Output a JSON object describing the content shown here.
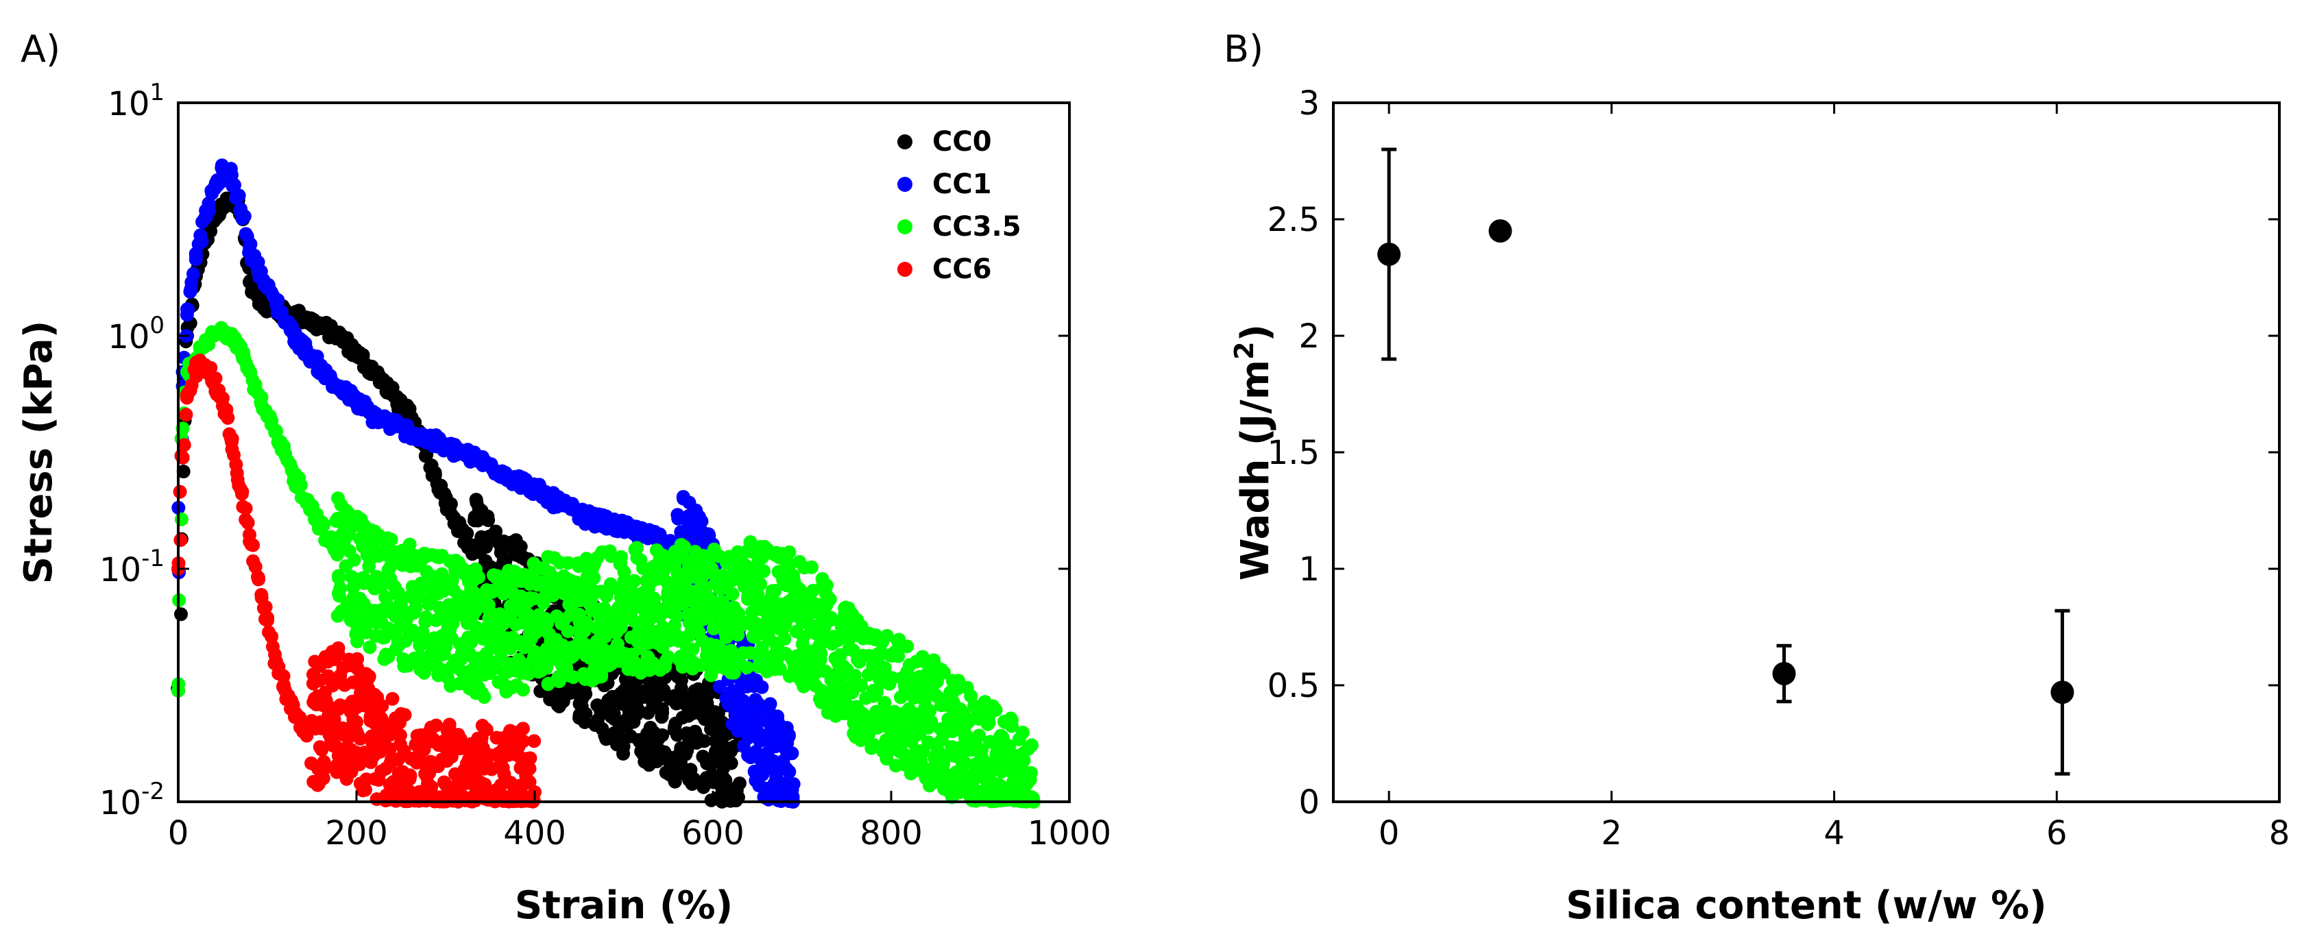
{
  "panels": [
    {
      "label": "A)"
    },
    {
      "label": "B)"
    }
  ],
  "chart_data": [
    {
      "type": "scatter",
      "panel": "A)",
      "xlabel": "Strain (%)",
      "ylabel": "Stress (kPa)",
      "xlim": [
        0,
        1000
      ],
      "ylim": [
        0.01,
        10
      ],
      "yscale": "log",
      "xticks": [
        "0",
        "200",
        "400",
        "600",
        "800",
        "1000"
      ],
      "yticks": [
        {
          "base": "10",
          "exp": "-2"
        },
        {
          "base": "10",
          "exp": "-1"
        },
        {
          "base": "10",
          "exp": "0"
        },
        {
          "base": "10",
          "exp": "1"
        }
      ],
      "legend_position": "top-right",
      "series": [
        {
          "name": "CC0",
          "color": "#000000",
          "x": [
            0,
            5,
            10,
            20,
            30,
            40,
            50,
            60,
            70,
            80,
            100,
            140,
            180,
            220,
            260,
            300,
            340,
            380,
            420,
            460,
            500,
            540,
            580,
            610,
            630
          ],
          "y": [
            0.03,
            0.3,
            1.0,
            1.8,
            2.5,
            3.1,
            3.6,
            3.9,
            3.5,
            1.7,
            1.3,
            1.2,
            1.0,
            0.7,
            0.45,
            0.2,
            0.1,
            0.07,
            0.05,
            0.04,
            0.03,
            0.025,
            0.02,
            0.015,
            0.012
          ]
        },
        {
          "name": "CC1",
          "color": "#0000ff",
          "x": [
            0,
            5,
            10,
            20,
            30,
            40,
            50,
            60,
            70,
            80,
            100,
            130,
            170,
            220,
            280,
            340,
            400,
            450,
            500,
            550,
            580,
            600,
            620,
            640,
            660,
            680,
            690
          ],
          "y": [
            0.1,
            0.7,
            1.3,
            2.2,
            3.2,
            4.3,
            5.1,
            4.9,
            3.5,
            2.4,
            1.6,
            1.0,
            0.65,
            0.45,
            0.36,
            0.29,
            0.22,
            0.17,
            0.15,
            0.13,
            0.1,
            0.07,
            0.04,
            0.025,
            0.015,
            0.012,
            0.01
          ]
        },
        {
          "name": "CC3.5",
          "color": "#00ff00",
          "x": [
            0,
            5,
            10,
            20,
            30,
            40,
            50,
            60,
            70,
            80,
            100,
            130,
            170,
            200,
            250,
            300,
            350,
            400,
            450,
            500,
            550,
            600,
            650,
            700,
            740,
            780,
            820,
            860,
            900,
            940,
            960
          ],
          "y": [
            0.03,
            0.4,
            0.7,
            0.8,
            0.9,
            1.0,
            1.05,
            1.02,
            0.9,
            0.7,
            0.45,
            0.25,
            0.13,
            0.09,
            0.07,
            0.06,
            0.05,
            0.06,
            0.06,
            0.065,
            0.07,
            0.065,
            0.07,
            0.06,
            0.04,
            0.03,
            0.025,
            0.02,
            0.015,
            0.012,
            0.01
          ]
        },
        {
          "name": "CC6",
          "color": "#ff0000",
          "x": [
            0,
            5,
            10,
            20,
            30,
            40,
            50,
            60,
            70,
            80,
            90,
            100,
            110,
            120,
            140,
            160,
            180,
            200,
            220,
            240,
            260,
            280,
            400
          ],
          "y": [
            0.1,
            0.3,
            0.55,
            0.72,
            0.75,
            0.65,
            0.5,
            0.35,
            0.22,
            0.14,
            0.09,
            0.06,
            0.04,
            0.03,
            0.02,
            0.022,
            0.025,
            0.022,
            0.018,
            0.015,
            0.013,
            0.012,
            0.011
          ]
        }
      ]
    },
    {
      "type": "scatter",
      "panel": "B)",
      "xlabel": "Silica content (w/w %)",
      "ylabel": "Wadh (J/m2)",
      "xlim": [
        -0.5,
        8
      ],
      "ylim": [
        0,
        3
      ],
      "xticks": [
        "0",
        "2",
        "4",
        "6",
        "8"
      ],
      "yticks": [
        "0",
        "0.5",
        "1",
        "1.5",
        "2",
        "2.5",
        "3"
      ],
      "series": [
        {
          "color": "#000000",
          "x": [
            0,
            1,
            3.55,
            6.05
          ],
          "y": [
            2.35,
            2.45,
            0.55,
            0.47
          ],
          "y_err": [
            0.45,
            0.03,
            0.12,
            0.35
          ],
          "x_err": [
            0.05,
            0.05,
            0.05,
            0.05
          ]
        }
      ]
    }
  ]
}
